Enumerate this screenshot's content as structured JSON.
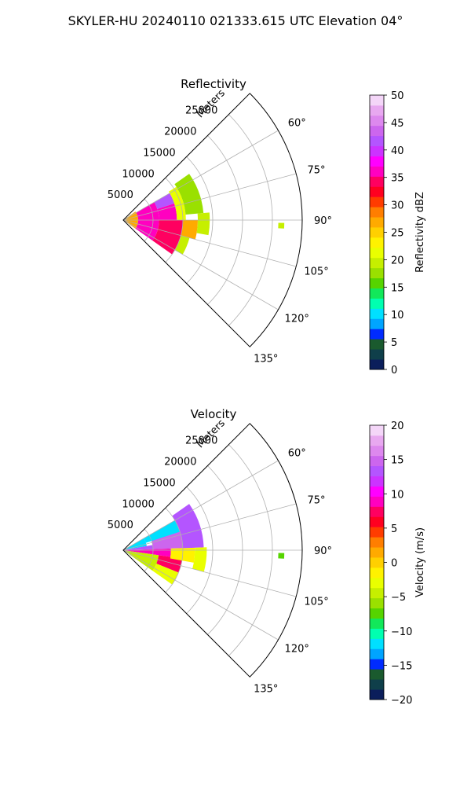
{
  "figure_title": "SKYLER-HU  20240110  021333.615 UTC Elevation 04°",
  "chart_data": [
    {
      "type": "heatmap",
      "projection": "polar-sector",
      "title": "Reflectivity",
      "radial_axis_label": "Meters",
      "radial_ticks": [
        5000,
        10000,
        15000,
        20000,
        25000
      ],
      "radial_tick_labels": [
        "5000",
        "10000",
        "15000",
        "20000",
        "25000"
      ],
      "radial_range": [
        0,
        30000
      ],
      "azimuth_range": [
        45,
        135
      ],
      "azimuth_ticks": [
        60,
        75,
        90,
        105,
        120,
        135
      ],
      "azimuth_tick_labels": [
        "60°",
        "75°",
        "90°",
        "105°",
        "120°",
        "135°"
      ],
      "grid": true,
      "colorbar": {
        "label": "Reflectivity dBZ",
        "range": [
          0,
          50
        ],
        "ticks": [
          0,
          5,
          10,
          15,
          20,
          25,
          30,
          35,
          40,
          45,
          50
        ],
        "tick_labels": [
          "0",
          "5",
          "10",
          "15",
          "20",
          "25",
          "30",
          "35",
          "40",
          "45",
          "50"
        ],
        "colors": [
          "#0b1e5b",
          "#0f3f4a",
          "#1a5a2e",
          "#002bff",
          "#00a4ff",
          "#00e0ff",
          "#00ffb0",
          "#12e85a",
          "#56d400",
          "#9ae000",
          "#c6ef00",
          "#e9ff00",
          "#fff200",
          "#ffd000",
          "#ffaa00",
          "#ff7e00",
          "#ff3c00",
          "#ff0020",
          "#ff0060",
          "#ff00c0",
          "#ff00ff",
          "#cc33ff",
          "#b455ff",
          "#cc66ee",
          "#dd88ee",
          "#e8a8f0",
          "#f4d6f8"
        ]
      },
      "echo_regions": [
        {
          "az_range": [
            55,
            125
          ],
          "range_m": [
            0,
            2500
          ],
          "value_dbz": 27
        },
        {
          "az_range": [
            60,
            125
          ],
          "range_m": [
            2500,
            6000
          ],
          "value_dbz": 36
        },
        {
          "az_range": [
            60,
            72
          ],
          "range_m": [
            6000,
            9000
          ],
          "value_dbz": 42
        },
        {
          "az_range": [
            72,
            90
          ],
          "range_m": [
            6000,
            9000
          ],
          "value_dbz": 37
        },
        {
          "az_range": [
            90,
            125
          ],
          "range_m": [
            6000,
            10000
          ],
          "value_dbz": 35
        },
        {
          "az_range": [
            58,
            90
          ],
          "range_m": [
            9000,
            10500
          ],
          "value_dbz": 22
        },
        {
          "az_range": [
            90,
            105
          ],
          "range_m": [
            10000,
            12500
          ],
          "value_dbz": 26
        },
        {
          "az_range": [
            105,
            120
          ],
          "range_m": [
            10000,
            11500
          ],
          "value_dbz": 20
        },
        {
          "az_range": [
            55,
            85
          ],
          "range_m": [
            10500,
            13500
          ],
          "value_dbz": 17
        },
        {
          "az_range": [
            85,
            100
          ],
          "range_m": [
            12500,
            14500
          ],
          "value_dbz": 20
        },
        {
          "az_range": [
            91,
            93
          ],
          "range_m": [
            26000,
            27000
          ],
          "value_dbz": 20
        }
      ]
    },
    {
      "type": "heatmap",
      "projection": "polar-sector",
      "title": "Velocity",
      "radial_axis_label": "Meters",
      "radial_ticks": [
        5000,
        10000,
        15000,
        20000,
        25000
      ],
      "radial_tick_labels": [
        "5000",
        "10000",
        "15000",
        "20000",
        "25000"
      ],
      "radial_range": [
        0,
        30000
      ],
      "azimuth_range": [
        45,
        135
      ],
      "azimuth_ticks": [
        60,
        75,
        90,
        105,
        120,
        135
      ],
      "azimuth_tick_labels": [
        "60°",
        "75°",
        "90°",
        "105°",
        "120°",
        "135°"
      ],
      "grid": true,
      "colorbar": {
        "label": "Velocity (m/s)",
        "range": [
          -20,
          20
        ],
        "ticks": [
          -20,
          -15,
          -10,
          -5,
          0,
          5,
          10,
          15,
          20
        ],
        "tick_labels": [
          "−20",
          "−15",
          "−10",
          "−5",
          "0",
          "5",
          "10",
          "15",
          "20"
        ],
        "colors": [
          "#0b1e5b",
          "#0f3f4a",
          "#1a5a2e",
          "#002bff",
          "#00a4ff",
          "#00e0ff",
          "#00ffb0",
          "#12e85a",
          "#56d400",
          "#9ae000",
          "#c6ef00",
          "#e9ff00",
          "#fff200",
          "#ffd000",
          "#ffaa00",
          "#ff7e00",
          "#ff3c00",
          "#ff0020",
          "#ff0060",
          "#ff00c0",
          "#ff00ff",
          "#cc33ff",
          "#b455ff",
          "#cc66ee",
          "#dd88ee",
          "#e8a8f0",
          "#f4d6f8"
        ]
      },
      "echo_regions": [
        {
          "az_range": [
            88,
            98
          ],
          "range_m": [
            0,
            8000
          ],
          "value_ms": 9
        },
        {
          "az_range": [
            60,
            80
          ],
          "range_m": [
            0,
            4000
          ],
          "value_ms": -12
        },
        {
          "az_range": [
            80,
            88
          ],
          "range_m": [
            0,
            5000
          ],
          "value_ms": 14
        },
        {
          "az_range": [
            98,
            125
          ],
          "range_m": [
            0,
            6000
          ],
          "value_ms": -5
        },
        {
          "az_range": [
            70,
            88
          ],
          "range_m": [
            5000,
            10000
          ],
          "value_ms": 15
        },
        {
          "az_range": [
            60,
            72
          ],
          "range_m": [
            4000,
            10000
          ],
          "value_ms": -12
        },
        {
          "az_range": [
            98,
            112
          ],
          "range_m": [
            6000,
            10000
          ],
          "value_ms": 8
        },
        {
          "az_range": [
            112,
            125
          ],
          "range_m": [
            6000,
            10000
          ],
          "value_ms": -3
        },
        {
          "az_range": [
            88,
            100
          ],
          "range_m": [
            8000,
            12000
          ],
          "value_ms": -1
        },
        {
          "az_range": [
            55,
            88
          ],
          "range_m": [
            10000,
            13500
          ],
          "value_ms": 14
        },
        {
          "az_range": [
            88,
            105
          ],
          "range_m": [
            12000,
            14000
          ],
          "value_ms": -3
        },
        {
          "az_range": [
            91,
            93
          ],
          "range_m": [
            26000,
            27000
          ],
          "value_ms": -8
        }
      ]
    }
  ]
}
